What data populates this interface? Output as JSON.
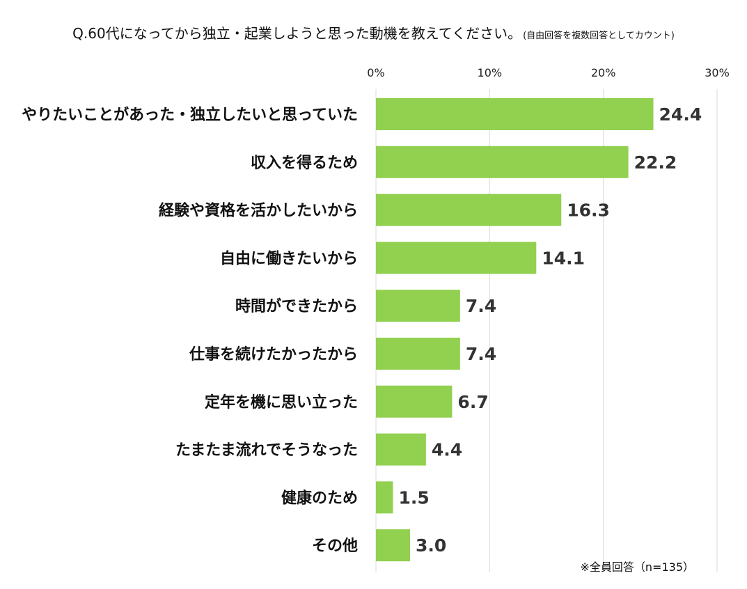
{
  "chart_data": {
    "type": "bar",
    "orientation": "horizontal",
    "title": "Q.60代になってから独立・起業しようと思った動機を教えてください。",
    "subtitle": "(自由回答を複数回答としてカウント)",
    "categories": [
      "やりたいことがあった・独立したいと思っていた",
      "収入を得るため",
      "経験や資格を活かしたいから",
      "自由に働きたいから",
      "時間ができたから",
      "仕事を続けたかったから",
      "定年を機に思い立った",
      "たまたま流れでそうなった",
      "健康のため",
      "その他"
    ],
    "values": [
      24.4,
      22.2,
      16.3,
      14.1,
      7.4,
      7.4,
      6.7,
      4.4,
      1.5,
      3.0
    ],
    "value_labels": [
      "24.4",
      "22.2",
      "16.3",
      "14.1",
      "7.4",
      "7.4",
      "6.7",
      "4.4",
      "1.5",
      "3.0"
    ],
    "xlim": [
      0,
      30
    ],
    "x_ticks": [
      0,
      10,
      20,
      30
    ],
    "x_tick_labels": [
      "0%",
      "10%",
      "20%",
      "30%"
    ],
    "xlabel": "",
    "ylabel": "",
    "grid": true,
    "bar_color": "#92D050",
    "footnote": "※全員回答（n=135）"
  }
}
